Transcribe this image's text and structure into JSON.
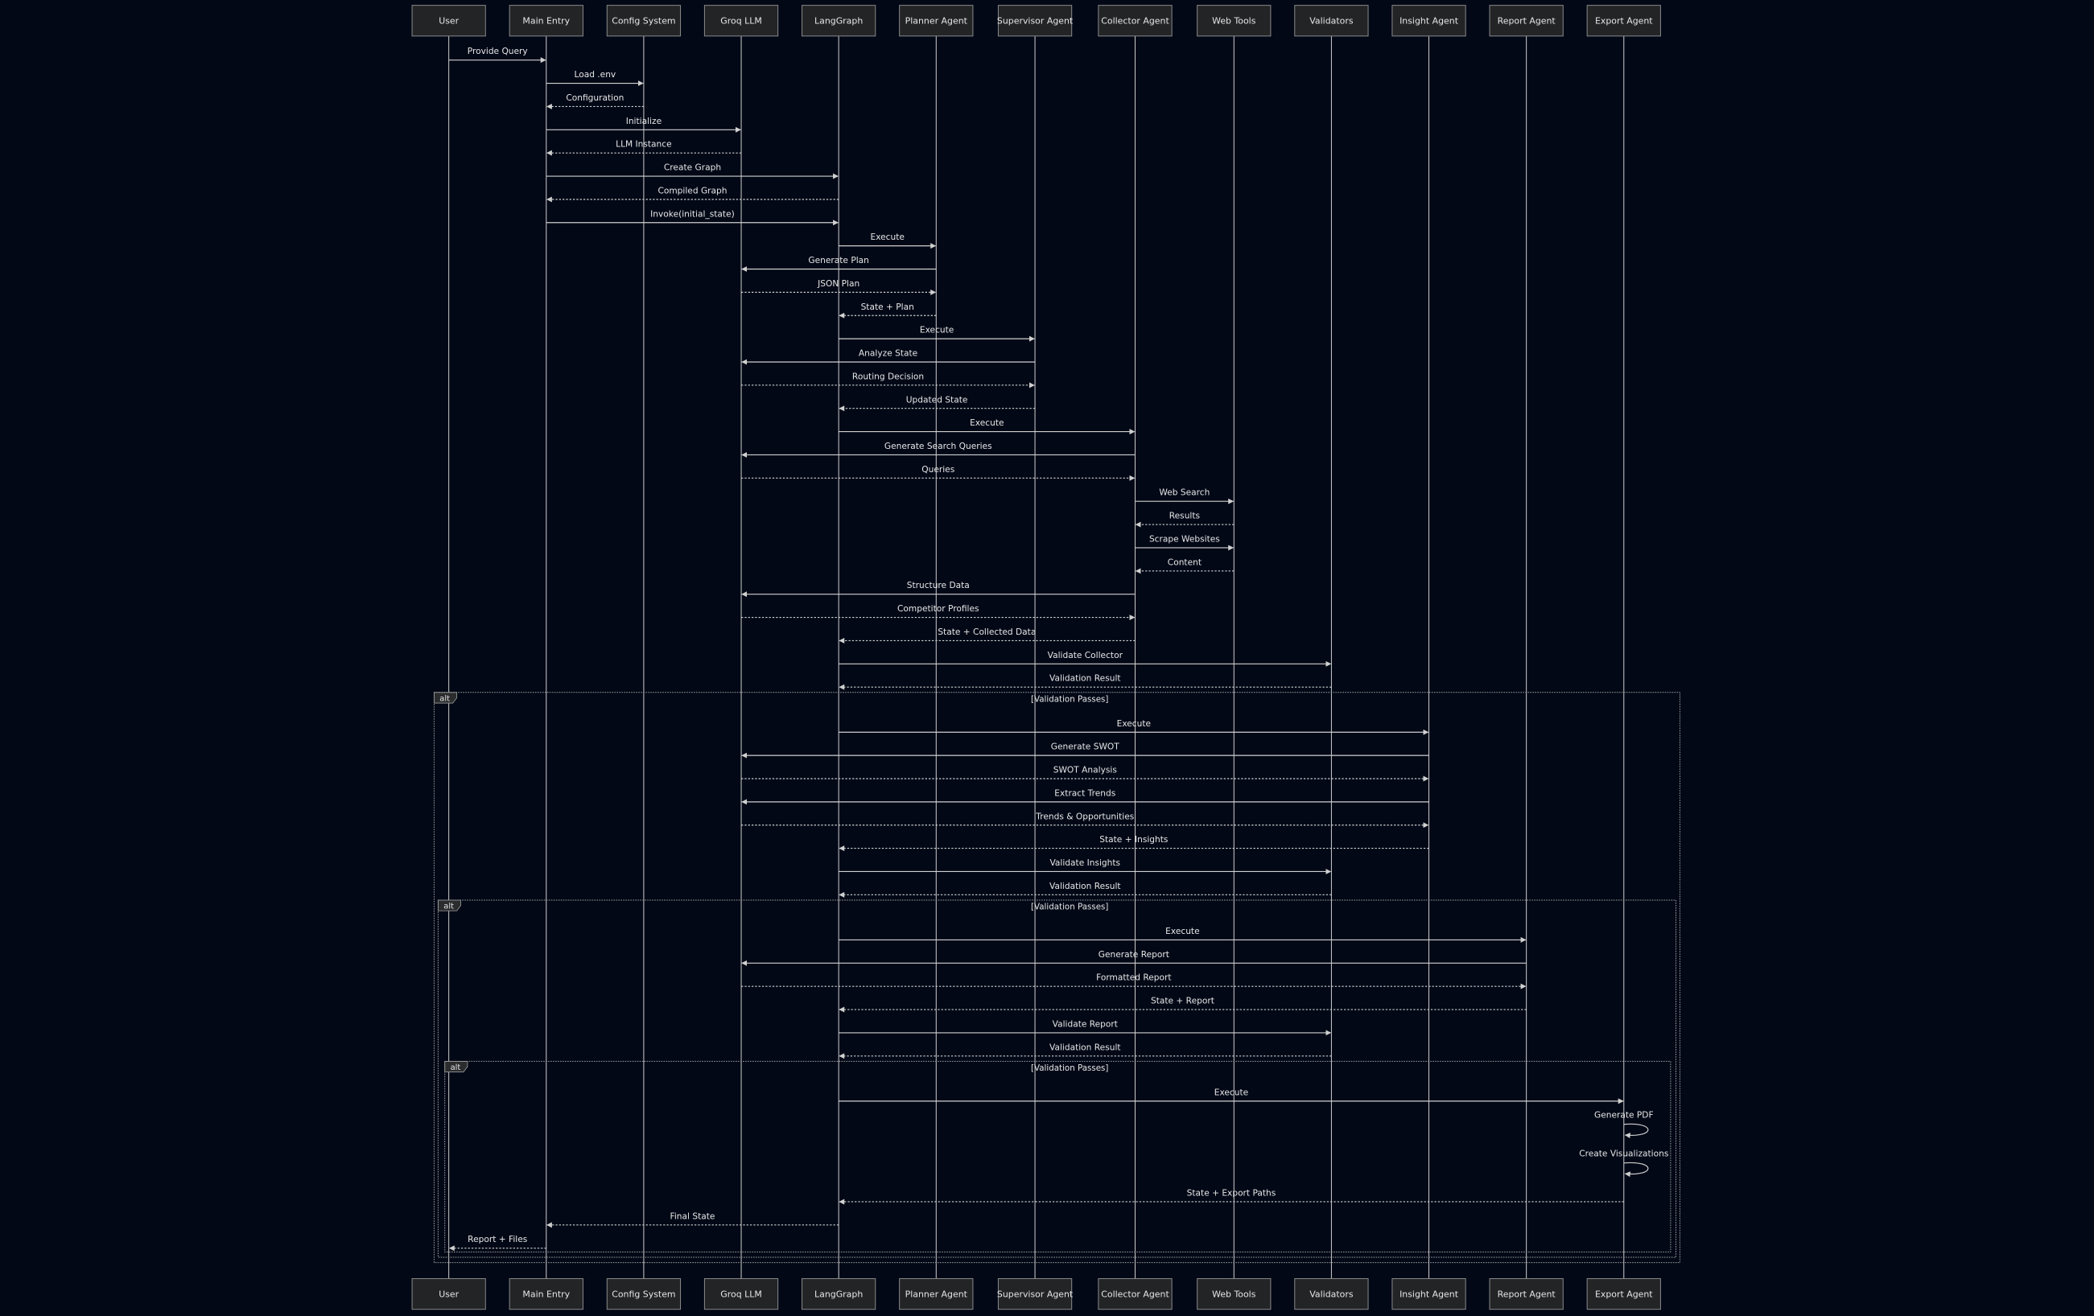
{
  "colors": {
    "background": "#020816",
    "box_fill": "#222426",
    "line": "#d0d0d0",
    "text": "#e6e6e6"
  },
  "participants": [
    "User",
    "Main Entry",
    "Config System",
    "Groq LLM",
    "LangGraph",
    "Planner Agent",
    "Supervisor Agent",
    "Collector Agent",
    "Web Tools",
    "Validators",
    "Insight Agent",
    "Report Agent",
    "Export Agent"
  ],
  "sequence": [
    {
      "kind": "msg",
      "from": "User",
      "to": "Main Entry",
      "label": "Provide Query",
      "style": "solid"
    },
    {
      "kind": "msg",
      "from": "Main Entry",
      "to": "Config System",
      "label": "Load .env",
      "style": "solid"
    },
    {
      "kind": "msg",
      "from": "Config System",
      "to": "Main Entry",
      "label": "Configuration",
      "style": "dashed"
    },
    {
      "kind": "msg",
      "from": "Main Entry",
      "to": "Groq LLM",
      "label": "Initialize",
      "style": "solid"
    },
    {
      "kind": "msg",
      "from": "Groq LLM",
      "to": "Main Entry",
      "label": "LLM Instance",
      "style": "dashed"
    },
    {
      "kind": "msg",
      "from": "Main Entry",
      "to": "LangGraph",
      "label": "Create Graph",
      "style": "solid"
    },
    {
      "kind": "msg",
      "from": "LangGraph",
      "to": "Main Entry",
      "label": "Compiled Graph",
      "style": "dashed"
    },
    {
      "kind": "msg",
      "from": "Main Entry",
      "to": "LangGraph",
      "label": "Invoke(initial_state)",
      "style": "solid"
    },
    {
      "kind": "msg",
      "from": "LangGraph",
      "to": "Planner Agent",
      "label": "Execute",
      "style": "solid"
    },
    {
      "kind": "msg",
      "from": "Planner Agent",
      "to": "Groq LLM",
      "label": "Generate Plan",
      "style": "solid"
    },
    {
      "kind": "msg",
      "from": "Groq LLM",
      "to": "Planner Agent",
      "label": "JSON Plan",
      "style": "dashed"
    },
    {
      "kind": "msg",
      "from": "Planner Agent",
      "to": "LangGraph",
      "label": "State + Plan",
      "style": "dashed"
    },
    {
      "kind": "msg",
      "from": "LangGraph",
      "to": "Supervisor Agent",
      "label": "Execute",
      "style": "solid"
    },
    {
      "kind": "msg",
      "from": "Supervisor Agent",
      "to": "Groq LLM",
      "label": "Analyze State",
      "style": "solid"
    },
    {
      "kind": "msg",
      "from": "Groq LLM",
      "to": "Supervisor Agent",
      "label": "Routing Decision",
      "style": "dashed"
    },
    {
      "kind": "msg",
      "from": "Supervisor Agent",
      "to": "LangGraph",
      "label": "Updated State",
      "style": "dashed"
    },
    {
      "kind": "msg",
      "from": "LangGraph",
      "to": "Collector Agent",
      "label": "Execute",
      "style": "solid"
    },
    {
      "kind": "msg",
      "from": "Collector Agent",
      "to": "Groq LLM",
      "label": "Generate Search Queries",
      "style": "solid"
    },
    {
      "kind": "msg",
      "from": "Groq LLM",
      "to": "Collector Agent",
      "label": "Queries",
      "style": "dashed"
    },
    {
      "kind": "msg",
      "from": "Collector Agent",
      "to": "Web Tools",
      "label": "Web Search",
      "style": "solid"
    },
    {
      "kind": "msg",
      "from": "Web Tools",
      "to": "Collector Agent",
      "label": "Results",
      "style": "dashed"
    },
    {
      "kind": "msg",
      "from": "Collector Agent",
      "to": "Web Tools",
      "label": "Scrape Websites",
      "style": "solid"
    },
    {
      "kind": "msg",
      "from": "Web Tools",
      "to": "Collector Agent",
      "label": "Content",
      "style": "dashed"
    },
    {
      "kind": "msg",
      "from": "Collector Agent",
      "to": "Groq LLM",
      "label": "Structure Data",
      "style": "solid"
    },
    {
      "kind": "msg",
      "from": "Groq LLM",
      "to": "Collector Agent",
      "label": "Competitor Profiles",
      "style": "dashed"
    },
    {
      "kind": "msg",
      "from": "Collector Agent",
      "to": "LangGraph",
      "label": "State + Collected Data",
      "style": "dashed"
    },
    {
      "kind": "msg",
      "from": "LangGraph",
      "to": "Validators",
      "label": "Validate Collector",
      "style": "solid"
    },
    {
      "kind": "msg",
      "from": "Validators",
      "to": "LangGraph",
      "label": "Validation Result",
      "style": "dashed"
    },
    {
      "kind": "alt_start",
      "tag": "alt",
      "condition": "[Validation Passes]"
    },
    {
      "kind": "msg",
      "from": "LangGraph",
      "to": "Insight Agent",
      "label": "Execute",
      "style": "solid"
    },
    {
      "kind": "msg",
      "from": "Insight Agent",
      "to": "Groq LLM",
      "label": "Generate SWOT",
      "style": "solid"
    },
    {
      "kind": "msg",
      "from": "Groq LLM",
      "to": "Insight Agent",
      "label": "SWOT Analysis",
      "style": "dashed"
    },
    {
      "kind": "msg",
      "from": "Insight Agent",
      "to": "Groq LLM",
      "label": "Extract Trends",
      "style": "solid"
    },
    {
      "kind": "msg",
      "from": "Groq LLM",
      "to": "Insight Agent",
      "label": "Trends & Opportunities",
      "style": "dashed"
    },
    {
      "kind": "msg",
      "from": "Insight Agent",
      "to": "LangGraph",
      "label": "State + Insights",
      "style": "dashed"
    },
    {
      "kind": "msg",
      "from": "LangGraph",
      "to": "Validators",
      "label": "Validate Insights",
      "style": "solid"
    },
    {
      "kind": "msg",
      "from": "Validators",
      "to": "LangGraph",
      "label": "Validation Result",
      "style": "dashed"
    },
    {
      "kind": "alt_start",
      "tag": "alt",
      "condition": "[Validation Passes]"
    },
    {
      "kind": "msg",
      "from": "LangGraph",
      "to": "Report Agent",
      "label": "Execute",
      "style": "solid"
    },
    {
      "kind": "msg",
      "from": "Report Agent",
      "to": "Groq LLM",
      "label": "Generate Report",
      "style": "solid"
    },
    {
      "kind": "msg",
      "from": "Groq LLM",
      "to": "Report Agent",
      "label": "Formatted Report",
      "style": "dashed"
    },
    {
      "kind": "msg",
      "from": "Report Agent",
      "to": "LangGraph",
      "label": "State + Report",
      "style": "dashed"
    },
    {
      "kind": "msg",
      "from": "LangGraph",
      "to": "Validators",
      "label": "Validate Report",
      "style": "solid"
    },
    {
      "kind": "msg",
      "from": "Validators",
      "to": "LangGraph",
      "label": "Validation Result",
      "style": "dashed"
    },
    {
      "kind": "alt_start",
      "tag": "alt",
      "condition": "[Validation Passes]"
    },
    {
      "kind": "msg",
      "from": "LangGraph",
      "to": "Export Agent",
      "label": "Execute",
      "style": "solid"
    },
    {
      "kind": "self",
      "from": "Export Agent",
      "to": "Export Agent",
      "label": "Generate PDF",
      "style": "solid"
    },
    {
      "kind": "self",
      "from": "Export Agent",
      "to": "Export Agent",
      "label": "Create Visualizations",
      "style": "solid"
    },
    {
      "kind": "msg",
      "from": "Export Agent",
      "to": "LangGraph",
      "label": "State + Export Paths",
      "style": "dashed"
    },
    {
      "kind": "msg",
      "from": "LangGraph",
      "to": "Main Entry",
      "label": "Final State",
      "style": "dashed"
    },
    {
      "kind": "msg",
      "from": "Main Entry",
      "to": "User",
      "label": "Report + Files",
      "style": "dashed"
    },
    {
      "kind": "alt_end"
    },
    {
      "kind": "alt_end"
    },
    {
      "kind": "alt_end"
    }
  ]
}
